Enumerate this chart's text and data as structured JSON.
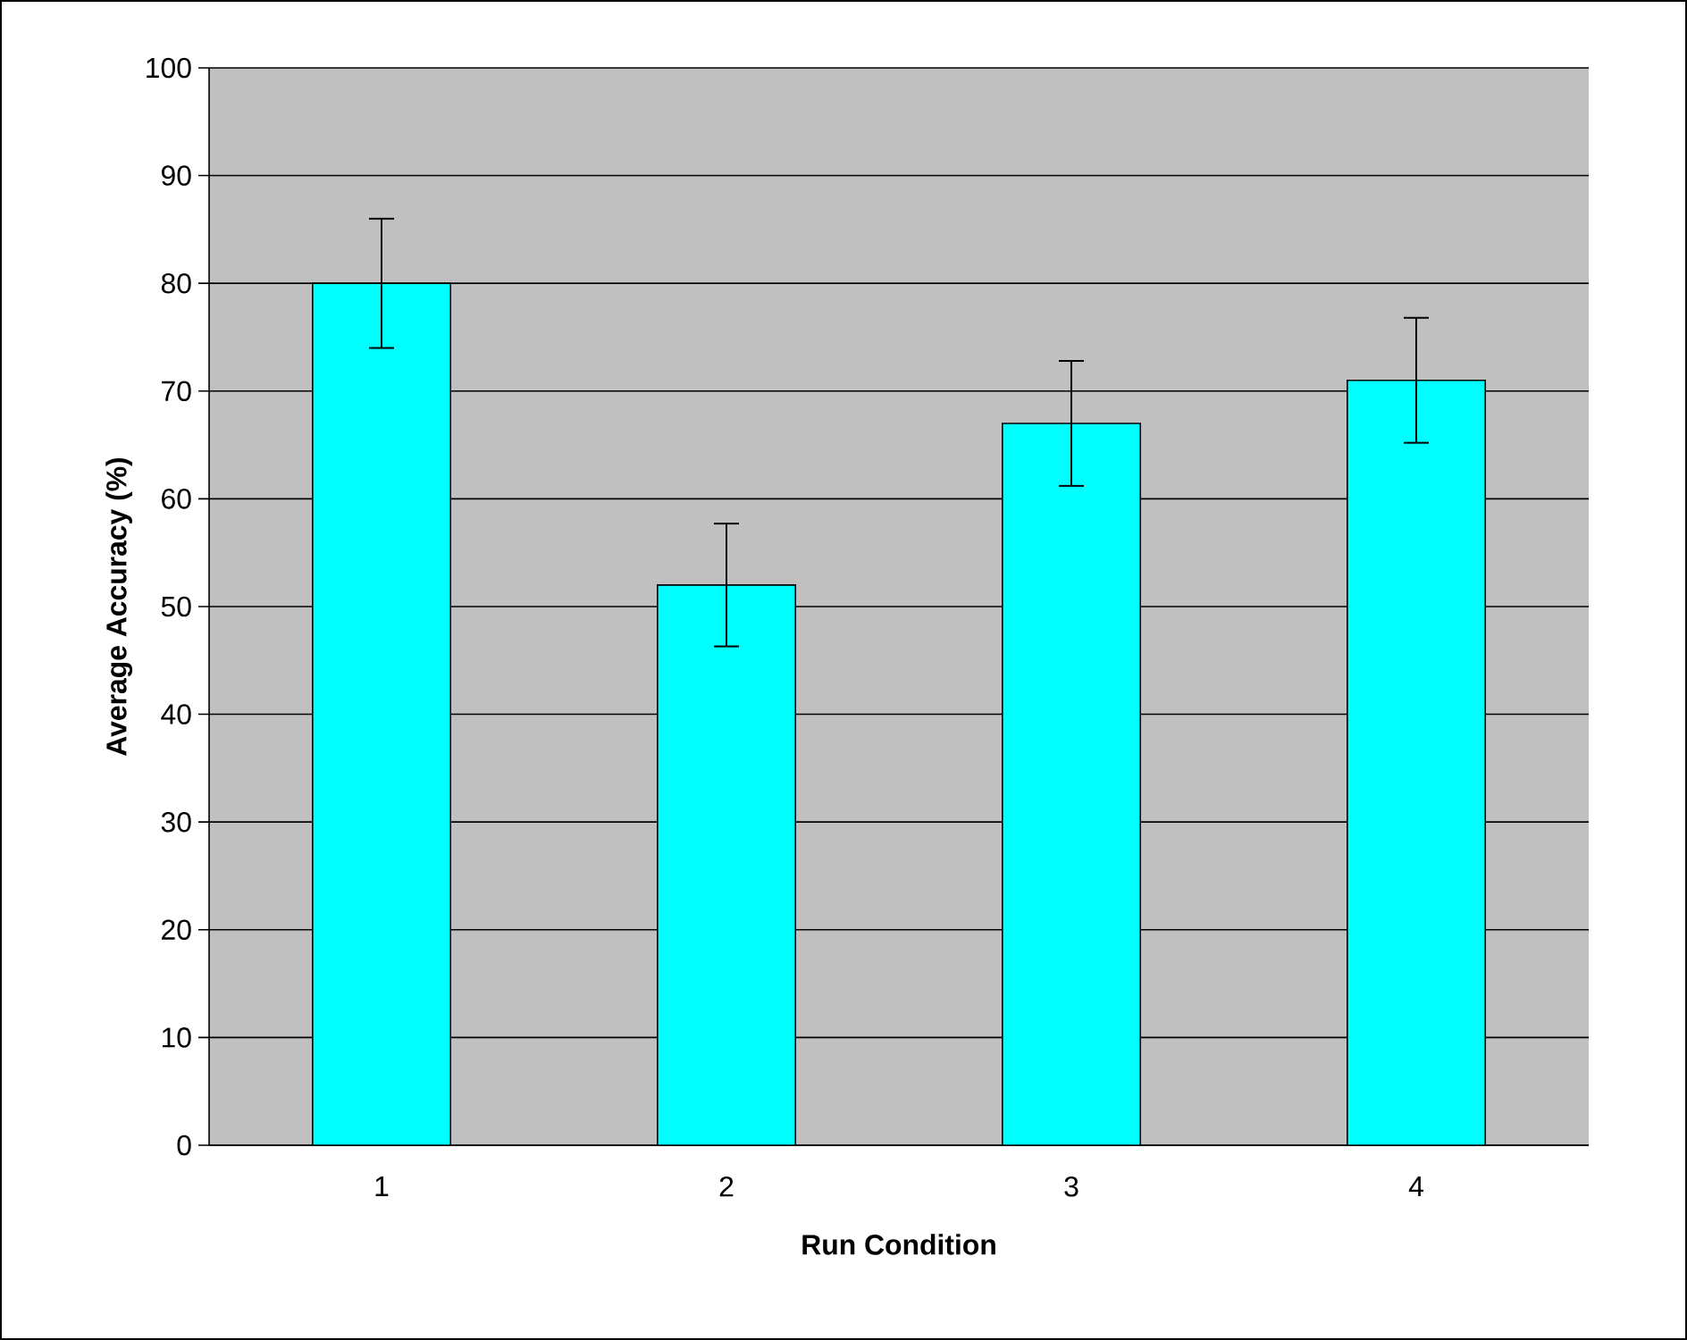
{
  "chart_data": {
    "type": "bar",
    "xlabel": "Run Condition",
    "ylabel": "Average Accuracy (%)",
    "categories": [
      "1",
      "2",
      "3",
      "4"
    ],
    "values": [
      80,
      52,
      67,
      71
    ],
    "errors": [
      6,
      5.7,
      5.8,
      5.8
    ],
    "color": "#00ffff",
    "ylim": [
      0,
      100
    ],
    "yticks": [
      0,
      10,
      20,
      30,
      40,
      50,
      60,
      70,
      80,
      90,
      100
    ],
    "grid": "y"
  }
}
